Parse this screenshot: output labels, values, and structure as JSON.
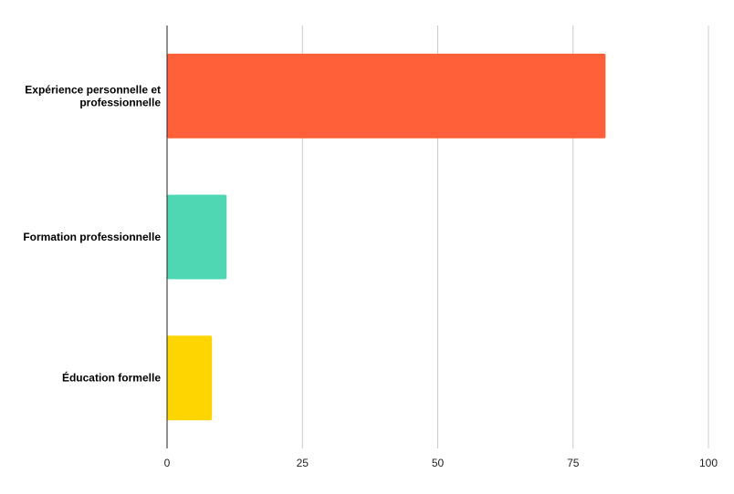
{
  "chart_data": {
    "type": "bar",
    "orientation": "horizontal",
    "categories": [
      "Expérience personnelle et professionnelle",
      "Formation professionnelle",
      "Éducation formelle"
    ],
    "category_lines": [
      [
        "Expérience personnelle et",
        "professionnelle"
      ],
      [
        "Formation professionnelle"
      ],
      [
        "Éducation formelle"
      ]
    ],
    "values": [
      81,
      11,
      8.3
    ],
    "colors": [
      "#ff6039",
      "#4fd6b3",
      "#ffd500"
    ],
    "xlim": [
      0,
      100
    ],
    "xticks": [
      0,
      25,
      50,
      75,
      100
    ],
    "title": "",
    "xlabel": "",
    "ylabel": "",
    "grid": "vertical",
    "legend": "none"
  }
}
